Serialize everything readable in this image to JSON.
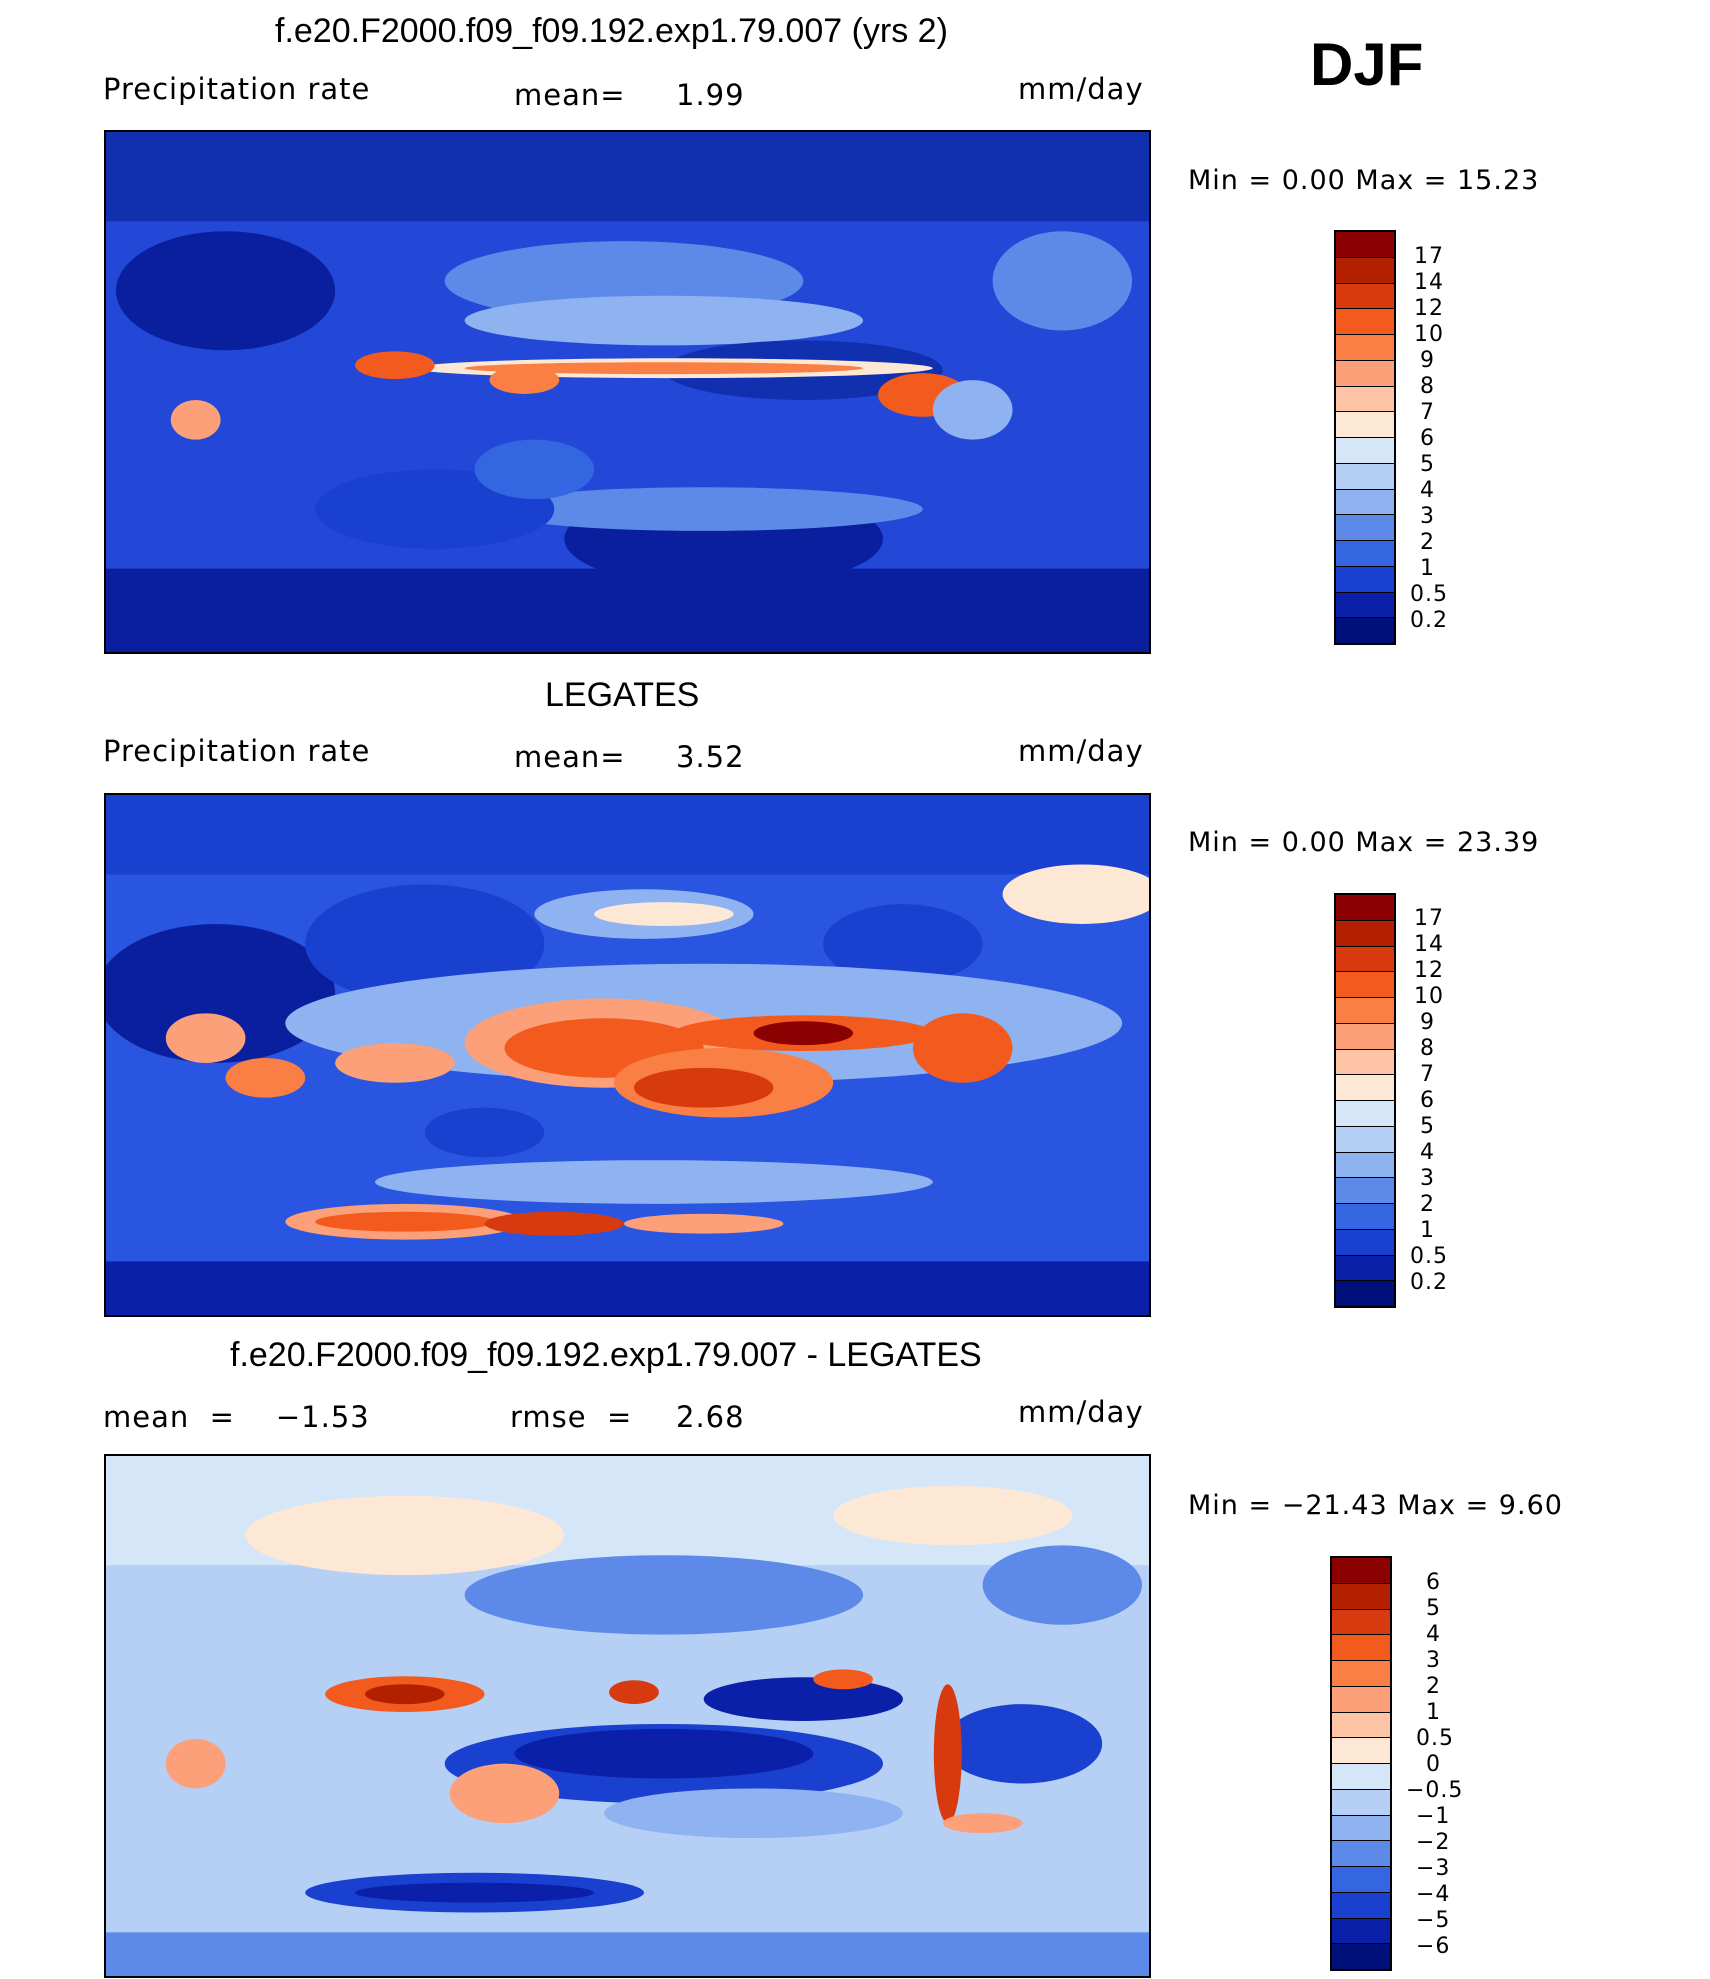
{
  "season": "DJF",
  "panels": [
    {
      "title": "f.e20.F2000.f09_f09.192.exp1.79.007 (yrs 2)",
      "left_label": "Precipitation rate",
      "center_label": "mean=",
      "center_value": "1.99",
      "units": "mm/day",
      "minmax": "Min  =     0.00  Max  =     15.23",
      "colorbar_ticks": [
        "17",
        "14",
        "12",
        "10",
        "9",
        "8",
        "7",
        "6",
        "5",
        "4",
        "3",
        "2",
        "1",
        "0.5",
        "0.2"
      ],
      "colorbar_colors": [
        "#8b0000",
        "#b22000",
        "#d83a10",
        "#f25a1e",
        "#fa7f45",
        "#fca07a",
        "#fdc4a5",
        "#fde8d6",
        "#d4e6f8",
        "#b6cff5",
        "#8fb2f0",
        "#5d8ae8",
        "#3366e0",
        "#1a40d0",
        "#0a20a8",
        "#00107a"
      ]
    },
    {
      "title": "LEGATES",
      "left_label": "Precipitation rate",
      "center_label": "mean=",
      "center_value": "3.52",
      "units": "mm/day",
      "minmax": "Min  =     0.00  Max  =    23.39",
      "colorbar_ticks": [
        "17",
        "14",
        "12",
        "10",
        "9",
        "8",
        "7",
        "6",
        "5",
        "4",
        "3",
        "2",
        "1",
        "0.5",
        "0.2"
      ],
      "colorbar_colors": [
        "#8b0000",
        "#b22000",
        "#d83a10",
        "#f25a1e",
        "#fa7f45",
        "#fca07a",
        "#fdc4a5",
        "#fde8d6",
        "#d4e6f8",
        "#b6cff5",
        "#8fb2f0",
        "#5d8ae8",
        "#3366e0",
        "#1a40d0",
        "#0a20a8",
        "#00107a"
      ]
    },
    {
      "title": "f.e20.F2000.f09_f09.192.exp1.79.007 - LEGATES",
      "left_label": "mean  =    −1.53",
      "center_label": "rmse  =",
      "center_value": "2.68",
      "units": "mm/day",
      "minmax": "Min  = −21.43  Max  =      9.60",
      "colorbar_ticks": [
        "6",
        "5",
        "4",
        "3",
        "2",
        "1",
        "0.5",
        "0",
        "−0.5",
        "−1",
        "−2",
        "−3",
        "−4",
        "−5",
        "−6"
      ],
      "colorbar_colors": [
        "#8b0000",
        "#b22000",
        "#d83a10",
        "#f25a1e",
        "#fa7f45",
        "#fca07a",
        "#fdc4a5",
        "#fde8d6",
        "#d4e6f8",
        "#b6cff5",
        "#8fb2f0",
        "#5d8ae8",
        "#3366e0",
        "#1a40d0",
        "#0a20a8",
        "#00107a"
      ]
    }
  ],
  "colors": {
    "ocean_deep": "#0a1f9e",
    "ocean_mid": "#2a55e0",
    "light_blue": "#9cc0f5",
    "pale": "#fde8d6",
    "red_band": "#f05020",
    "dark_red": "#8b0000",
    "coast": "#000000"
  }
}
